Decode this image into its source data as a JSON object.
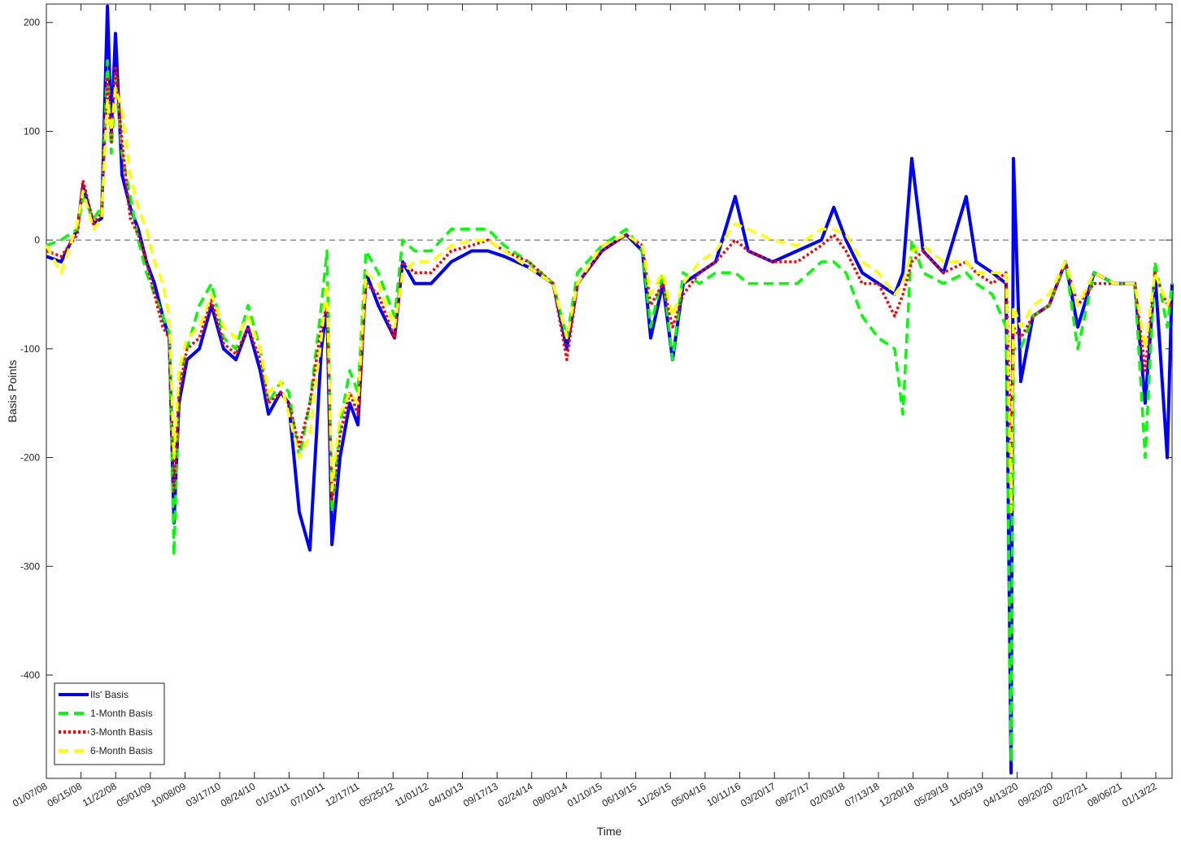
{
  "chart_data": {
    "type": "line",
    "x_label": "Time",
    "y_label": "Basis Points",
    "xlim": [
      0,
      5195
    ],
    "ylim": [
      -495,
      217
    ],
    "yticks": [
      -400,
      -300,
      -200,
      -100,
      0,
      100,
      200
    ],
    "xticks": [
      {
        "value": 0,
        "label": "01/07/08"
      },
      {
        "value": 160,
        "label": "06/15/08"
      },
      {
        "value": 320,
        "label": "11/22/08"
      },
      {
        "value": 480,
        "label": "05/01/09"
      },
      {
        "value": 640,
        "label": "10/08/09"
      },
      {
        "value": 800,
        "label": "03/17/10"
      },
      {
        "value": 960,
        "label": "08/24/10"
      },
      {
        "value": 1120,
        "label": "01/31/11"
      },
      {
        "value": 1280,
        "label": "07/10/11"
      },
      {
        "value": 1440,
        "label": "12/17/11"
      },
      {
        "value": 1600,
        "label": "05/25/12"
      },
      {
        "value": 1760,
        "label": "11/01/12"
      },
      {
        "value": 1920,
        "label": "04/10/13"
      },
      {
        "value": 2080,
        "label": "09/17/13"
      },
      {
        "value": 2240,
        "label": "02/24/14"
      },
      {
        "value": 2400,
        "label": "08/03/14"
      },
      {
        "value": 2560,
        "label": "01/10/15"
      },
      {
        "value": 2720,
        "label": "06/19/15"
      },
      {
        "value": 2880,
        "label": "11/26/15"
      },
      {
        "value": 3040,
        "label": "05/04/16"
      },
      {
        "value": 3200,
        "label": "10/11/16"
      },
      {
        "value": 3360,
        "label": "03/20/17"
      },
      {
        "value": 3520,
        "label": "08/27/17"
      },
      {
        "value": 3680,
        "label": "02/03/18"
      },
      {
        "value": 3840,
        "label": "07/13/18"
      },
      {
        "value": 4000,
        "label": "12/20/18"
      },
      {
        "value": 4160,
        "label": "05/29/19"
      },
      {
        "value": 4320,
        "label": "11/05/19"
      },
      {
        "value": 4480,
        "label": "04/13/20"
      },
      {
        "value": 4640,
        "label": "09/20/20"
      },
      {
        "value": 4800,
        "label": "02/27/21"
      },
      {
        "value": 4960,
        "label": "08/06/21"
      },
      {
        "value": 5120,
        "label": "01/13/22"
      }
    ],
    "legend": "southwest",
    "x": [
      0,
      68,
      143,
      169,
      218,
      255,
      282,
      300,
      319,
      349,
      387,
      424,
      462,
      499,
      537,
      567,
      589,
      612,
      649,
      706,
      762,
      818,
      875,
      931,
      987,
      1025,
      1081,
      1119,
      1167,
      1216,
      1269,
      1295,
      1318,
      1355,
      1400,
      1438,
      1475,
      1532,
      1607,
      1644,
      1700,
      1776,
      1869,
      1963,
      2038,
      2113,
      2226,
      2339,
      2402,
      2451,
      2564,
      2676,
      2751,
      2789,
      2845,
      2890,
      2939,
      3014,
      3089,
      3179,
      3239,
      3352,
      3465,
      3577,
      3634,
      3690,
      3765,
      3840,
      3915,
      3953,
      3994,
      4046,
      4140,
      4245,
      4291,
      4366,
      4429,
      4452,
      4463,
      4497,
      4553,
      4628,
      4703,
      4760,
      4835,
      4929,
      5023,
      5071,
      5116,
      5173,
      5195
    ],
    "series": [
      {
        "name": "Ils' Basis",
        "color": "#0000ff",
        "style": "solid",
        "values": [
          -15,
          -20,
          10,
          50,
          15,
          20,
          215,
          100,
          190,
          60,
          30,
          10,
          -20,
          -40,
          -70,
          -90,
          -260,
          -150,
          -110,
          -100,
          -60,
          -100,
          -110,
          -80,
          -120,
          -160,
          -140,
          -150,
          -250,
          -285,
          -100,
          -60,
          -280,
          -200,
          -150,
          -170,
          -30,
          -60,
          -90,
          -20,
          -40,
          -40,
          -20,
          -10,
          -10,
          -15,
          -25,
          -40,
          -100,
          -40,
          -10,
          5,
          -10,
          -90,
          -40,
          -110,
          -40,
          -30,
          -20,
          40,
          -10,
          -20,
          -10,
          0,
          30,
          0,
          -30,
          -40,
          -50,
          -30,
          75,
          -10,
          -30,
          40,
          -20,
          -30,
          -40,
          -490,
          75,
          -130,
          -70,
          -60,
          -20,
          -80,
          -30,
          -40,
          -40,
          -150,
          -30,
          -200,
          -40
        ]
      },
      {
        "name": "1-Month Basis",
        "color": "#00ff00",
        "style": "dashed",
        "values": [
          -5,
          0,
          10,
          40,
          20,
          30,
          165,
          80,
          150,
          80,
          40,
          0,
          -30,
          -50,
          -70,
          -85,
          -290,
          -130,
          -100,
          -60,
          -40,
          -90,
          -100,
          -60,
          -100,
          -150,
          -130,
          -140,
          -200,
          -150,
          -60,
          -10,
          -250,
          -170,
          -120,
          -140,
          -10,
          -30,
          -70,
          0,
          -10,
          -10,
          10,
          10,
          10,
          -5,
          -20,
          -40,
          -90,
          -30,
          -5,
          10,
          -10,
          -80,
          -30,
          -110,
          -30,
          -40,
          -30,
          -30,
          -40,
          -40,
          -40,
          -20,
          -20,
          -30,
          -70,
          -90,
          -100,
          -160,
          0,
          -30,
          -40,
          -30,
          -40,
          -50,
          -80,
          -480,
          -100,
          -100,
          -70,
          -60,
          -20,
          -100,
          -30,
          -40,
          -40,
          -200,
          -20,
          -80,
          -40
        ]
      },
      {
        "name": "3-Month Basis",
        "color": "#ff0000",
        "style": "dotted",
        "values": [
          -10,
          -15,
          5,
          55,
          15,
          25,
          150,
          90,
          160,
          90,
          20,
          5,
          -20,
          -50,
          -80,
          -90,
          -230,
          -140,
          -100,
          -90,
          -55,
          -95,
          -105,
          -80,
          -110,
          -150,
          -140,
          -150,
          -190,
          -150,
          -80,
          -60,
          -240,
          -180,
          -140,
          -160,
          -40,
          -50,
          -90,
          -20,
          -30,
          -30,
          -10,
          -5,
          0,
          -10,
          -20,
          -40,
          -110,
          -40,
          -10,
          5,
          -5,
          -60,
          -40,
          -80,
          -50,
          -30,
          -20,
          0,
          -10,
          -20,
          -20,
          -5,
          5,
          -10,
          -40,
          -40,
          -70,
          -50,
          -20,
          -10,
          -30,
          -20,
          -30,
          -40,
          -30,
          -200,
          -80,
          -90,
          -70,
          -60,
          -20,
          -60,
          -40,
          -40,
          -40,
          -120,
          -30,
          -60,
          -60
        ]
      },
      {
        "name": "6-Month Basis",
        "color": "#ffff00",
        "style": "dashed",
        "values": [
          -5,
          -30,
          15,
          45,
          10,
          20,
          130,
          100,
          140,
          120,
          60,
          30,
          10,
          -20,
          -40,
          -70,
          -200,
          -120,
          -90,
          -80,
          -50,
          -80,
          -90,
          -70,
          -100,
          -140,
          -130,
          -160,
          -200,
          -180,
          -90,
          -40,
          -230,
          -160,
          -140,
          -150,
          -30,
          -40,
          -80,
          -30,
          -20,
          -20,
          -5,
          0,
          0,
          -10,
          -25,
          -40,
          -90,
          -40,
          -5,
          5,
          -5,
          -50,
          -30,
          -70,
          -40,
          -20,
          -10,
          15,
          10,
          0,
          -5,
          10,
          10,
          5,
          -20,
          -30,
          -50,
          -40,
          -10,
          -5,
          -20,
          -20,
          -30,
          -30,
          -30,
          -250,
          -60,
          -80,
          -60,
          -50,
          -20,
          -60,
          -30,
          -40,
          -40,
          -100,
          -30,
          -60,
          -50
        ]
      }
    ]
  }
}
